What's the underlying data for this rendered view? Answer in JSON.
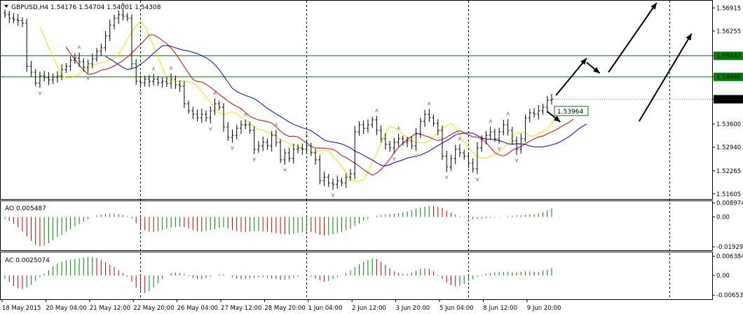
{
  "header": {
    "symbol_line": "GBPUSD,H4  1.54176 1.54704 1.54001 1.54308",
    "ao_label": "AO 0.005487",
    "ac_label": "AC 0.0025074"
  },
  "colors": {
    "background": "#ffffff",
    "frame": "#000000",
    "grid": "#000000",
    "candle": "#000000",
    "fractal": "#9a9a9a",
    "ma_yellow": "#f2e400",
    "ma_red": "#d60000",
    "ma_blue": "#0000c8",
    "hline": "#008000",
    "hist_up": "#008000",
    "hist_down": "#c00000",
    "arrow": "#000000"
  },
  "chart_data": [
    {
      "type": "line",
      "name": "price",
      "title": "GBPUSD,H4",
      "ohlc_header": [
        "1.54176",
        "1.54704",
        "1.54001",
        "1.54308"
      ],
      "ylim": [
        1.5146,
        1.5712
      ],
      "x_count": 130,
      "y_ticks": [
        "1.56915",
        "1.56255",
        "1.55547",
        "1.54946",
        "1.54308",
        "1.53600",
        "1.52940",
        "1.52265",
        "1.51605"
      ],
      "y_tick_values": [
        1.56915,
        1.56255,
        1.55547,
        1.54946,
        1.54308,
        1.536,
        1.5294,
        1.52265,
        1.51605
      ],
      "x_ticks": [
        "18 May 2015",
        "20 May 04:00",
        "21 May 12:00",
        "22 May 20:00",
        "26 May 04:00",
        "27 May 12:00",
        "28 May 20:00",
        "1 Jun 04:00",
        "2 Jun 12:00",
        "3 Jun 20:00",
        "5 Jun 04:00",
        "8 Jun 12:00",
        "9 Jun 20:00"
      ],
      "x_tick_index": [
        0,
        10,
        20,
        30,
        40,
        50,
        60,
        70,
        80,
        90,
        100,
        110,
        120
      ],
      "hlines": [
        {
          "value": 1.55547,
          "label": "1.55547"
        },
        {
          "value": 1.54946,
          "label": "1.54946"
        }
      ],
      "current_price": {
        "value": 1.54308,
        "label": "1.54308"
      },
      "annotation": {
        "text": "1.53964",
        "value": 1.53964,
        "index": 125
      },
      "vlines_index": [
        31,
        69,
        106,
        152
      ],
      "closes": [
        1.5672,
        1.5662,
        1.5658,
        1.5655,
        1.5648,
        1.5525,
        1.5508,
        1.5477,
        1.5498,
        1.5492,
        1.5486,
        1.5494,
        1.5498,
        1.5515,
        1.5525,
        1.5542,
        1.5548,
        1.5538,
        1.5522,
        1.5532,
        1.5546,
        1.5568,
        1.5578,
        1.5612,
        1.5642,
        1.5662,
        1.5672,
        1.5668,
        1.5662,
        1.5532,
        1.5482,
        1.5478,
        1.5488,
        1.5482,
        1.5488,
        1.5478,
        1.5482,
        1.5476,
        1.5488,
        1.5472,
        1.5468,
        1.5418,
        1.5398,
        1.5388,
        1.5378,
        1.5388,
        1.5378,
        1.5398,
        1.5418,
        1.5408,
        1.5352,
        1.5322,
        1.5328,
        1.5348,
        1.5358,
        1.5358,
        1.5342,
        1.5288,
        1.5298,
        1.5308,
        1.5298,
        1.5328,
        1.5308,
        1.5258,
        1.5278,
        1.5262,
        1.5288,
        1.5292,
        1.5288,
        1.5298,
        1.5278,
        1.5258,
        1.5198,
        1.5208,
        1.5192,
        1.5188,
        1.5198,
        1.5192,
        1.5208,
        1.5218,
        1.5338,
        1.5358,
        1.5348,
        1.5358,
        1.5372,
        1.5342,
        1.5318,
        1.5302,
        1.5292,
        1.5308,
        1.5318,
        1.5308,
        1.5312,
        1.5298,
        1.5332,
        1.5368,
        1.5388,
        1.5378,
        1.5362,
        1.5342,
        1.5268,
        1.5238,
        1.5262,
        1.5288,
        1.5278,
        1.5268,
        1.5248,
        1.5232,
        1.5292,
        1.5318,
        1.5328,
        1.5338,
        1.5318,
        1.5338,
        1.5358,
        1.5342,
        1.5312,
        1.5288,
        1.5318,
        1.5378,
        1.5392,
        1.5388,
        1.5398,
        1.5408,
        1.5428,
        1.5431
      ],
      "arrows": [
        {
          "from": [
            126,
            1.5442
          ],
          "to": [
            133,
            1.5548
          ],
          "note": "up-right"
        },
        {
          "from": [
            133,
            1.5536
          ],
          "to": [
            136,
            1.5505
          ],
          "note": "down-right"
        },
        {
          "from": [
            138,
            1.5508
          ],
          "to": [
            149,
            1.5706
          ],
          "note": "up-right"
        },
        {
          "from": [
            145,
            1.5368
          ],
          "to": [
            157,
            1.5618
          ],
          "note": "up-right"
        },
        {
          "from": [
            124,
            1.5396
          ],
          "to": [
            127,
            1.5366
          ],
          "note": "down-right"
        }
      ]
    },
    {
      "type": "bar",
      "name": "AO",
      "title": "AO 0.005487",
      "ylim": [
        -0.0215,
        0.0102
      ],
      "y_ticks": [
        "0.008974",
        "0.00",
        "-0.019294"
      ],
      "y_tick_values": [
        0.008974,
        0.0,
        -0.019294
      ],
      "values": [
        -0.0015,
        -0.0025,
        -0.0045,
        -0.0068,
        -0.0095,
        -0.0125,
        -0.0155,
        -0.018,
        -0.019,
        -0.0185,
        -0.017,
        -0.015,
        -0.013,
        -0.0115,
        -0.0095,
        -0.008,
        -0.006,
        -0.0045,
        -0.003,
        -0.0015,
        0.0,
        0.001,
        0.0015,
        0.0018,
        0.002,
        0.0022,
        0.0018,
        0.0012,
        0.0005,
        -0.001,
        -0.004,
        -0.007,
        -0.0085,
        -0.0095,
        -0.0098,
        -0.0092,
        -0.0085,
        -0.0078,
        -0.007,
        -0.0065,
        -0.0062,
        -0.0065,
        -0.0075,
        -0.0085,
        -0.0092,
        -0.0095,
        -0.009,
        -0.0085,
        -0.0078,
        -0.007,
        -0.0068,
        -0.0075,
        -0.0085,
        -0.0092,
        -0.0096,
        -0.0098,
        -0.0095,
        -0.0092,
        -0.009,
        -0.0092,
        -0.0095,
        -0.01,
        -0.0105,
        -0.011,
        -0.0112,
        -0.0112,
        -0.0108,
        -0.0102,
        -0.0098,
        -0.0095,
        -0.0098,
        -0.0105,
        -0.0115,
        -0.012,
        -0.0118,
        -0.0112,
        -0.0104,
        -0.0096,
        -0.0086,
        -0.0076,
        -0.0058,
        -0.0042,
        -0.0026,
        -0.0012,
        0.0,
        0.0008,
        0.0012,
        0.0016,
        0.0018,
        0.002,
        0.0024,
        0.003,
        0.0036,
        0.0044,
        0.0052,
        0.006,
        0.0066,
        0.0072,
        0.007,
        0.0066,
        0.0056,
        0.0042,
        0.0028,
        0.0014,
        0.0004,
        -0.0004,
        -0.001,
        -0.0014,
        -0.0014,
        -0.0012,
        -0.0008,
        -0.0006,
        -0.0004,
        -0.0002,
        0.0,
        0.0004,
        0.0008,
        0.001,
        0.0012,
        0.0014,
        0.0016,
        0.0018,
        0.0022,
        0.003,
        0.0042,
        0.0055
      ]
    },
    {
      "type": "bar",
      "name": "AC",
      "title": "AC 0.0025074",
      "ylim": [
        -0.0079,
        0.0077
      ],
      "y_ticks": [
        "0.006384",
        "0.00",
        "-0.006534"
      ],
      "y_tick_values": [
        0.006384,
        0.0,
        -0.006534
      ],
      "values": [
        -0.001,
        -0.0022,
        -0.0035,
        -0.0042,
        -0.0045,
        -0.004,
        -0.003,
        -0.0018,
        -0.0006,
        0.0006,
        0.0018,
        0.003,
        0.004,
        0.0046,
        0.005,
        0.0052,
        0.0054,
        0.0056,
        0.006,
        0.0062,
        0.0062,
        0.0058,
        0.0052,
        0.0044,
        0.0036,
        0.0028,
        0.0018,
        0.0008,
        -0.0004,
        -0.002,
        -0.004,
        -0.0055,
        -0.0058,
        -0.0052,
        -0.004,
        -0.0026,
        -0.0012,
        0.0,
        0.0008,
        0.001,
        0.0008,
        0.0004,
        -0.0002,
        -0.0008,
        -0.0012,
        -0.0012,
        -0.0008,
        -0.0004,
        0.0,
        0.0004,
        0.0004,
        0.0,
        -0.0006,
        -0.001,
        -0.0012,
        -0.0012,
        -0.001,
        -0.0008,
        -0.0006,
        -0.0006,
        -0.0008,
        -0.001,
        -0.0012,
        -0.0014,
        -0.0014,
        -0.0012,
        -0.0008,
        -0.0004,
        0.0,
        0.0,
        -0.0004,
        -0.001,
        -0.0016,
        -0.002,
        -0.0018,
        -0.0012,
        -0.0006,
        0.0,
        0.0008,
        0.0016,
        0.0028,
        0.0038,
        0.0046,
        0.0052,
        0.0056,
        0.0054,
        0.0046,
        0.0036,
        0.0024,
        0.0014,
        0.0008,
        0.0006,
        0.0006,
        0.001,
        0.0016,
        0.0022,
        0.0024,
        0.0022,
        0.0014,
        0.0002,
        -0.0012,
        -0.0024,
        -0.0032,
        -0.0036,
        -0.0034,
        -0.0028,
        -0.002,
        -0.0012,
        -0.0004,
        0.0002,
        0.0006,
        0.0008,
        0.001,
        0.0012,
        0.0012,
        0.0012,
        0.001,
        0.001,
        0.0012,
        0.0014,
        0.0014,
        0.0012,
        0.0012,
        0.0016,
        0.002,
        0.0025
      ]
    }
  ]
}
